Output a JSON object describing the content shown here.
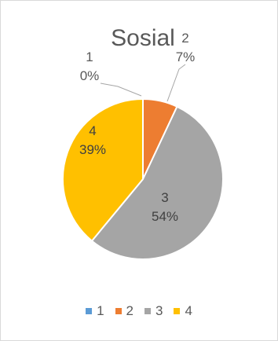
{
  "chart_data": {
    "type": "pie",
    "title": "Sosial",
    "categories": [
      "1",
      "2",
      "3",
      "4"
    ],
    "values": [
      0,
      7,
      54,
      39
    ],
    "labels": [
      {
        "category": "1",
        "percent": "0%"
      },
      {
        "category": "2",
        "percent": "7%"
      },
      {
        "category": "3",
        "percent": "54%"
      },
      {
        "category": "4",
        "percent": "39%"
      }
    ],
    "colors": [
      "#5B9BD5",
      "#ED7D31",
      "#A5A5A5",
      "#FFC000"
    ],
    "legend_position": "bottom",
    "start_angle": "top, clockwise"
  }
}
